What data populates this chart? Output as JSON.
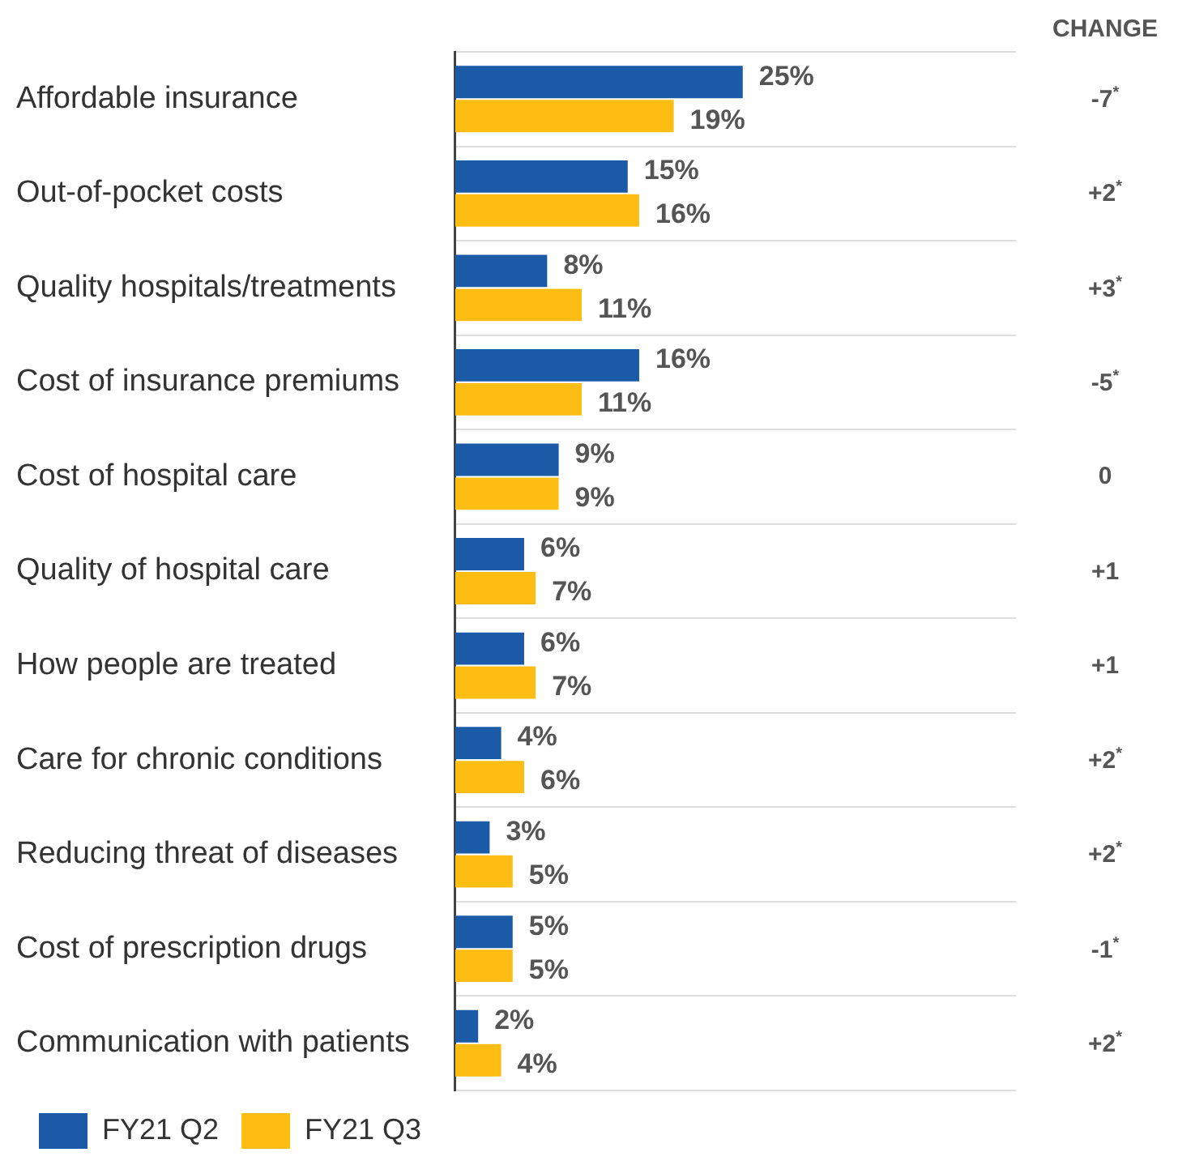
{
  "chart_data": {
    "type": "bar",
    "orientation": "horizontal",
    "categories": [
      "Affordable insurance",
      "Out-of-pocket costs",
      "Quality hospitals/treatments",
      "Cost of insurance premiums",
      "Cost of hospital care",
      "Quality of hospital care",
      "How people are treated",
      "Care for chronic conditions",
      "Reducing threat of diseases",
      "Cost of prescription drugs",
      "Communication with patients"
    ],
    "series": [
      {
        "name": "FY21 Q2",
        "color": "#1a5aa6",
        "values": [
          25,
          15,
          8,
          16,
          9,
          6,
          6,
          4,
          3,
          5,
          2
        ],
        "value_labels": [
          "25%",
          "15%",
          "8%",
          "16%",
          "9%",
          "6%",
          "6%",
          "4%",
          "3%",
          "5%",
          "2%"
        ]
      },
      {
        "name": "FY21 Q3",
        "color": "#fdbd12",
        "values": [
          19,
          16,
          11,
          11,
          9,
          7,
          7,
          6,
          5,
          5,
          4
        ],
        "value_labels": [
          "19%",
          "16%",
          "11%",
          "11%",
          "9%",
          "7%",
          "7%",
          "6%",
          "5%",
          "5%",
          "4%"
        ]
      }
    ],
    "grid": "y",
    "legend": "bottom left",
    "tick_labels": "y",
    "annotations": [
      "CHANGE",
      "-7$^{*}$",
      "+2$^{*}$",
      "+3$^{*}$",
      "-5$^{*}$",
      "0",
      "+1",
      "+1",
      "+2$^{*}$",
      "+2$^{*}$",
      "-1$^{*}$",
      "+2$^{*}$"
    ]
  }
}
